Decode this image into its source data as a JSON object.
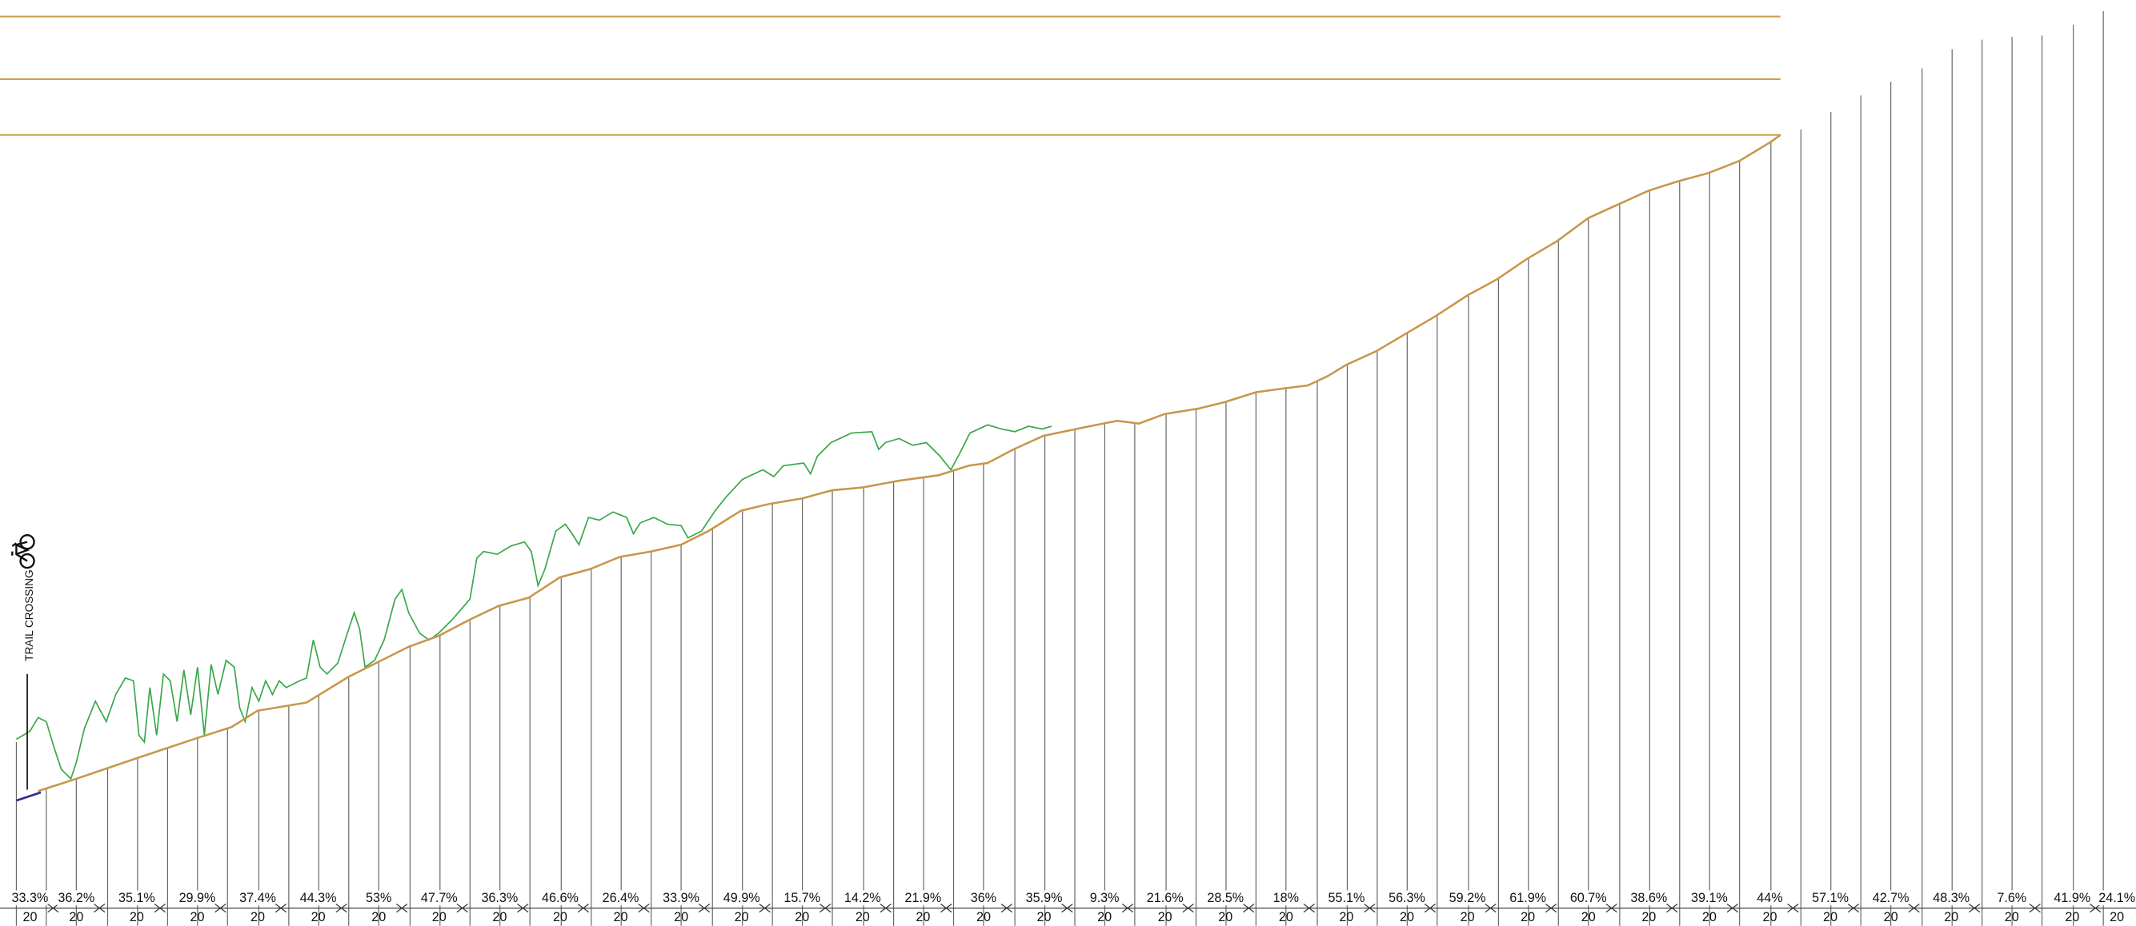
{
  "annotation": "TRAIL CROSSING",
  "segments": [
    {
      "grade": "33.3%",
      "length": "20"
    },
    {
      "grade": "36.2%",
      "length": "20"
    },
    {
      "grade": "35.1%",
      "length": "20"
    },
    {
      "grade": "29.9%",
      "length": "20"
    },
    {
      "grade": "37.4%",
      "length": "20"
    },
    {
      "grade": "44.3%",
      "length": "20"
    },
    {
      "grade": "53%",
      "length": "20"
    },
    {
      "grade": "47.7%",
      "length": "20"
    },
    {
      "grade": "36.3%",
      "length": "20"
    },
    {
      "grade": "46.6%",
      "length": "20"
    },
    {
      "grade": "26.4%",
      "length": "20"
    },
    {
      "grade": "33.9%",
      "length": "20"
    },
    {
      "grade": "49.9%",
      "length": "20"
    },
    {
      "grade": "15.7%",
      "length": "20"
    },
    {
      "grade": "14.2%",
      "length": "20"
    },
    {
      "grade": "21.9%",
      "length": "20"
    },
    {
      "grade": "36%",
      "length": "20"
    },
    {
      "grade": "35.9%",
      "length": "20"
    },
    {
      "grade": "9.3%",
      "length": "20"
    },
    {
      "grade": "21.6%",
      "length": "20"
    },
    {
      "grade": "28.5%",
      "length": "20"
    },
    {
      "grade": "18%",
      "length": "20"
    },
    {
      "grade": "55.1%",
      "length": "20"
    },
    {
      "grade": "56.3%",
      "length": "20"
    },
    {
      "grade": "59.2%",
      "length": "20"
    },
    {
      "grade": "61.9%",
      "length": "20"
    },
    {
      "grade": "60.7%",
      "length": "20"
    },
    {
      "grade": "38.6%",
      "length": "20"
    },
    {
      "grade": "39.1%",
      "length": "20"
    },
    {
      "grade": "44%",
      "length": "20"
    },
    {
      "grade": "57.1%",
      "length": "20"
    },
    {
      "grade": "42.7%",
      "length": "20"
    },
    {
      "grade": "48.3%",
      "length": "20"
    },
    {
      "grade": "7.6%",
      "length": "20"
    },
    {
      "grade": "41.9%",
      "length": "20"
    },
    {
      "grade": "24.1%",
      "length": "20"
    }
  ]
}
